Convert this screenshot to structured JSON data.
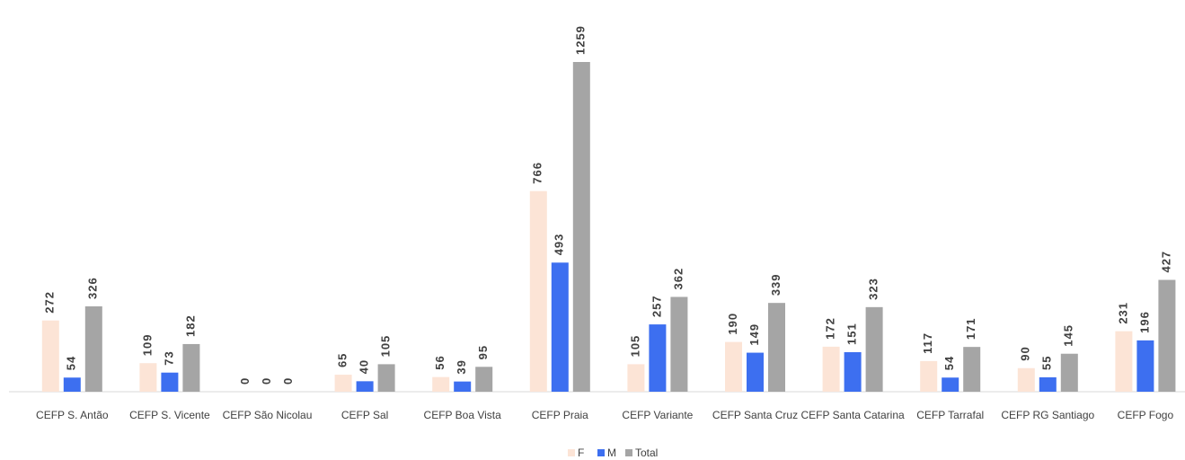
{
  "chart_data": {
    "type": "bar",
    "categories": [
      "CEFP S. Antão",
      "CEFP S. Vicente",
      "CEFP São Nicolau",
      "CEFP Sal",
      "CEFP Boa Vista",
      "CEFP Praia",
      "CEFP Variante",
      "CEFP Santa Cruz",
      "CEFP Santa Catarina",
      "CEFP Tarrafal",
      "CEFP RG Santiago",
      "CEFP Fogo"
    ],
    "series": [
      {
        "name": "F",
        "color": "#fce4d6",
        "values": [
          272,
          109,
          0,
          65,
          56,
          766,
          105,
          190,
          172,
          117,
          90,
          231
        ]
      },
      {
        "name": "M",
        "color": "#3d6ff0",
        "values": [
          54,
          73,
          0,
          40,
          39,
          493,
          257,
          149,
          151,
          54,
          55,
          196
        ]
      },
      {
        "name": "Total",
        "color": "#a5a5a5",
        "values": [
          326,
          182,
          0,
          105,
          95,
          1259,
          362,
          339,
          323,
          171,
          145,
          427
        ]
      }
    ],
    "legend": "bottom"
  }
}
